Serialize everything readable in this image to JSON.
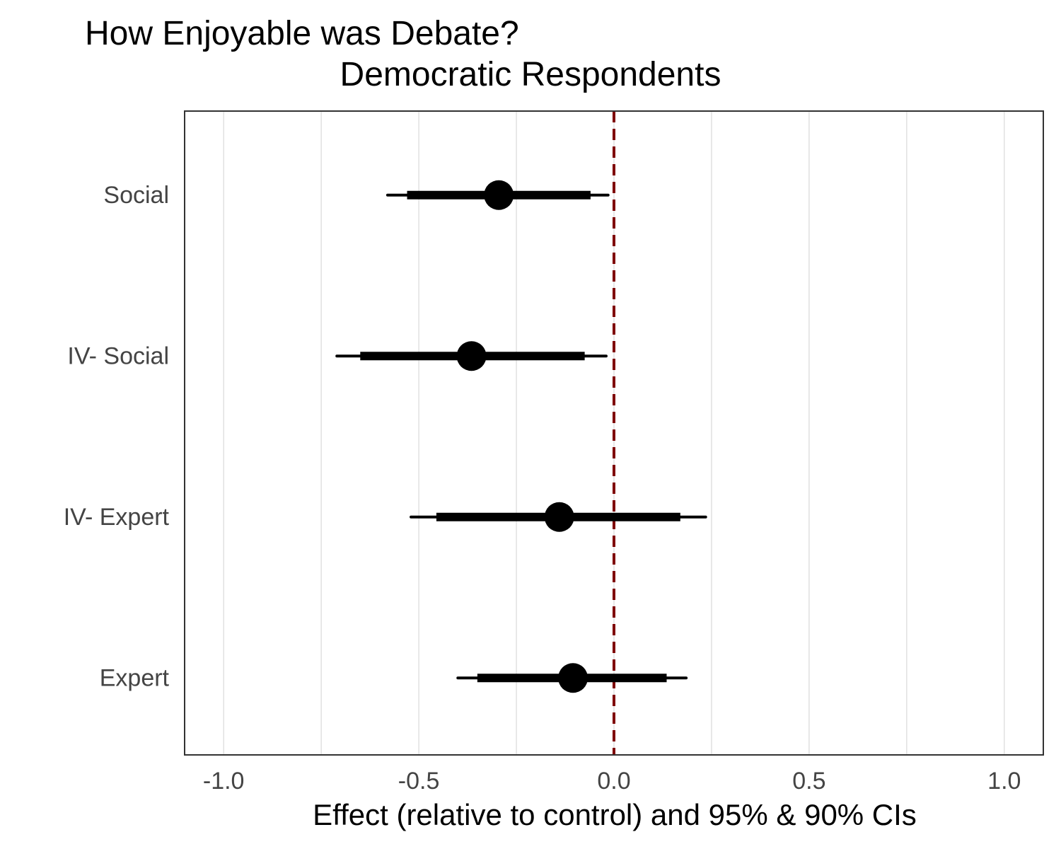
{
  "chart_data": {
    "type": "scatter",
    "title_lines": [
      "How Enjoyable was Debate?",
      "Democratic Respondents"
    ],
    "xlabel": "Effect (relative to control) and 95% & 90% CIs",
    "ylabel": "",
    "xlim": [
      -1.1,
      1.1
    ],
    "x_ticks": [
      -1.0,
      -0.5,
      0.0,
      0.5,
      1.0
    ],
    "x_tick_labels": [
      "-1.0",
      "-0.5",
      "0.0",
      "0.5",
      "1.0"
    ],
    "categories": [
      "Social",
      "IV- Social",
      "IV- Expert",
      "Expert"
    ],
    "estimates": [
      {
        "label": "Social",
        "estimate": -0.295,
        "ci95": [
          -0.58,
          -0.015
        ],
        "ci90": [
          -0.53,
          -0.06
        ]
      },
      {
        "label": "IV- Social",
        "estimate": -0.365,
        "ci95": [
          -0.71,
          -0.02
        ],
        "ci90": [
          -0.65,
          -0.075
        ]
      },
      {
        "label": "IV- Expert",
        "estimate": -0.14,
        "ci95": [
          -0.52,
          0.235
        ],
        "ci90": [
          -0.455,
          0.17
        ]
      },
      {
        "label": "Expert",
        "estimate": -0.105,
        "ci95": [
          -0.4,
          0.185
        ],
        "ci90": [
          -0.35,
          0.135
        ]
      }
    ],
    "reference_line": {
      "x": 0,
      "color": "#7f0000",
      "style": "dashed"
    },
    "grid": true,
    "colors": {
      "points": "#000000",
      "grid": "#d9d9d9",
      "panel_border": "#333333",
      "tick_text": "#444444"
    }
  }
}
